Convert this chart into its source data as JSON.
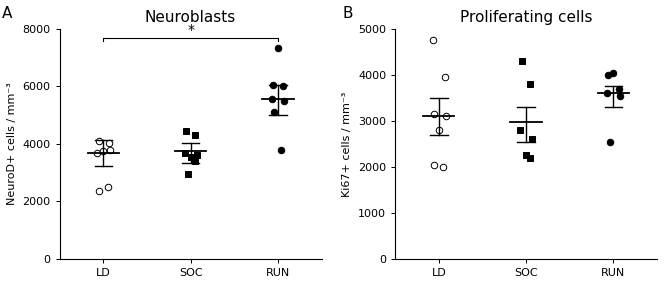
{
  "panel_A": {
    "title": "Neuroblasts",
    "ylabel": "NeuroD+ cells / mm⁻³",
    "groups": [
      "LD",
      "SOC",
      "RUN"
    ],
    "ylim": [
      0,
      8000
    ],
    "yticks": [
      0,
      2000,
      4000,
      6000,
      8000
    ],
    "LD": {
      "points": [
        3700,
        4050,
        4100,
        3800,
        3750,
        2350,
        2500
      ],
      "mean": 3700,
      "sem_low": 3250,
      "sem_high": 4150,
      "marker": "o",
      "facecolor": "white",
      "edgecolor": "black"
    },
    "SOC": {
      "points": [
        4450,
        4300,
        3700,
        3600,
        3550,
        3400,
        2950
      ],
      "mean": 3750,
      "sem_low": 3350,
      "sem_high": 4050,
      "marker": "s",
      "facecolor": "black",
      "edgecolor": "black"
    },
    "RUN": {
      "points": [
        7350,
        6050,
        6000,
        5550,
        5500,
        5100,
        3800
      ],
      "mean": 5550,
      "sem_low": 5000,
      "sem_high": 6050,
      "marker": "o",
      "facecolor": "black",
      "edgecolor": "black"
    },
    "sig_bracket": {
      "from": 0,
      "to": 2,
      "y": 7700,
      "label": "*"
    }
  },
  "panel_B": {
    "title": "Proliferating cells",
    "ylabel": "Ki67+ cells / mm⁻³",
    "groups": [
      "LD",
      "SOC",
      "RUN"
    ],
    "ylim": [
      0,
      5000
    ],
    "yticks": [
      0,
      1000,
      2000,
      3000,
      4000,
      5000
    ],
    "LD": {
      "points": [
        4750,
        3950,
        3150,
        3100,
        2800,
        2050,
        2000
      ],
      "mean": 3100,
      "sem_low": 2700,
      "sem_high": 3500,
      "marker": "o",
      "facecolor": "white",
      "edgecolor": "black"
    },
    "SOC": {
      "points": [
        4300,
        3800,
        2800,
        2600,
        2250,
        2200
      ],
      "mean": 2980,
      "sem_low": 2550,
      "sem_high": 3300,
      "marker": "s",
      "facecolor": "black",
      "edgecolor": "black"
    },
    "RUN": {
      "points": [
        4050,
        4000,
        3700,
        3600,
        3550,
        2550
      ],
      "mean": 3600,
      "sem_low": 3300,
      "sem_high": 3750,
      "marker": "o",
      "facecolor": "black",
      "edgecolor": "black"
    }
  },
  "background_color": "#ffffff",
  "panel_label_fontsize": 11,
  "title_fontsize": 11,
  "tick_fontsize": 8,
  "label_fontsize": 8
}
